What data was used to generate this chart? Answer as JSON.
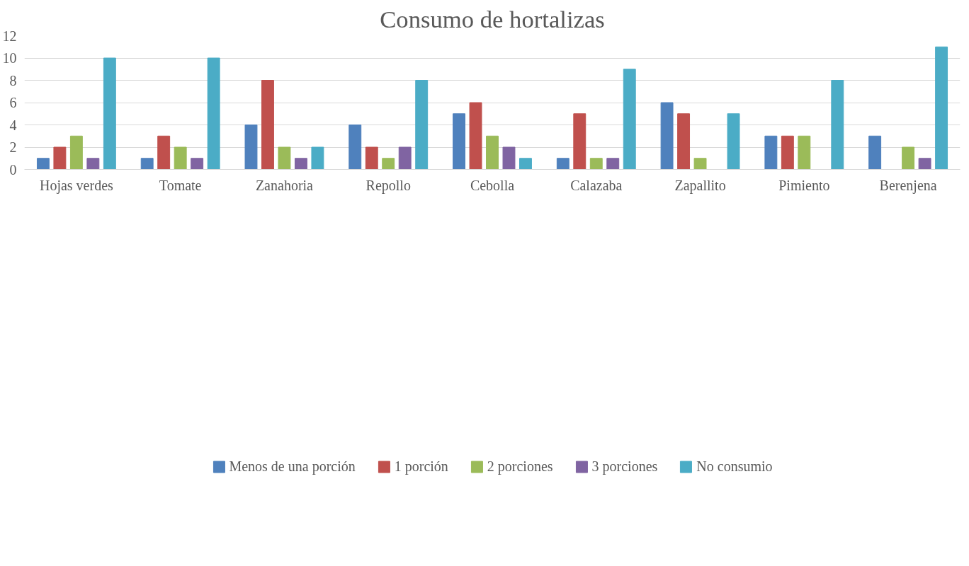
{
  "chart_data": {
    "type": "bar",
    "title": "Consumo de hortalizas",
    "categories": [
      "Hojas verdes",
      "Tomate",
      "Zanahoria",
      "Repollo",
      "Cebolla",
      "Calazaba",
      "Zapallito",
      "Pimiento",
      "Berenjena"
    ],
    "series": [
      {
        "name": "Menos de una porción",
        "color": "#4f81bd",
        "values": [
          1,
          1,
          4,
          4,
          5,
          1,
          6,
          3,
          3
        ]
      },
      {
        "name": "1 porción",
        "color": "#c0504d",
        "values": [
          2,
          3,
          8,
          2,
          6,
          5,
          5,
          3,
          0
        ]
      },
      {
        "name": "2 porciones",
        "color": "#9bbb59",
        "values": [
          3,
          2,
          2,
          1,
          3,
          1,
          1,
          3,
          2
        ]
      },
      {
        "name": "3 porciones",
        "color": "#8064a2",
        "values": [
          1,
          1,
          1,
          2,
          2,
          1,
          0,
          0,
          1
        ]
      },
      {
        "name": "No consumio",
        "color": "#4bacc6",
        "values": [
          10,
          10,
          2,
          8,
          1,
          9,
          5,
          8,
          11
        ]
      }
    ],
    "ylim": [
      0,
      12
    ],
    "yticks": [
      0,
      2,
      4,
      6,
      8,
      10,
      12
    ],
    "grid": "y",
    "legend": "bottom"
  }
}
